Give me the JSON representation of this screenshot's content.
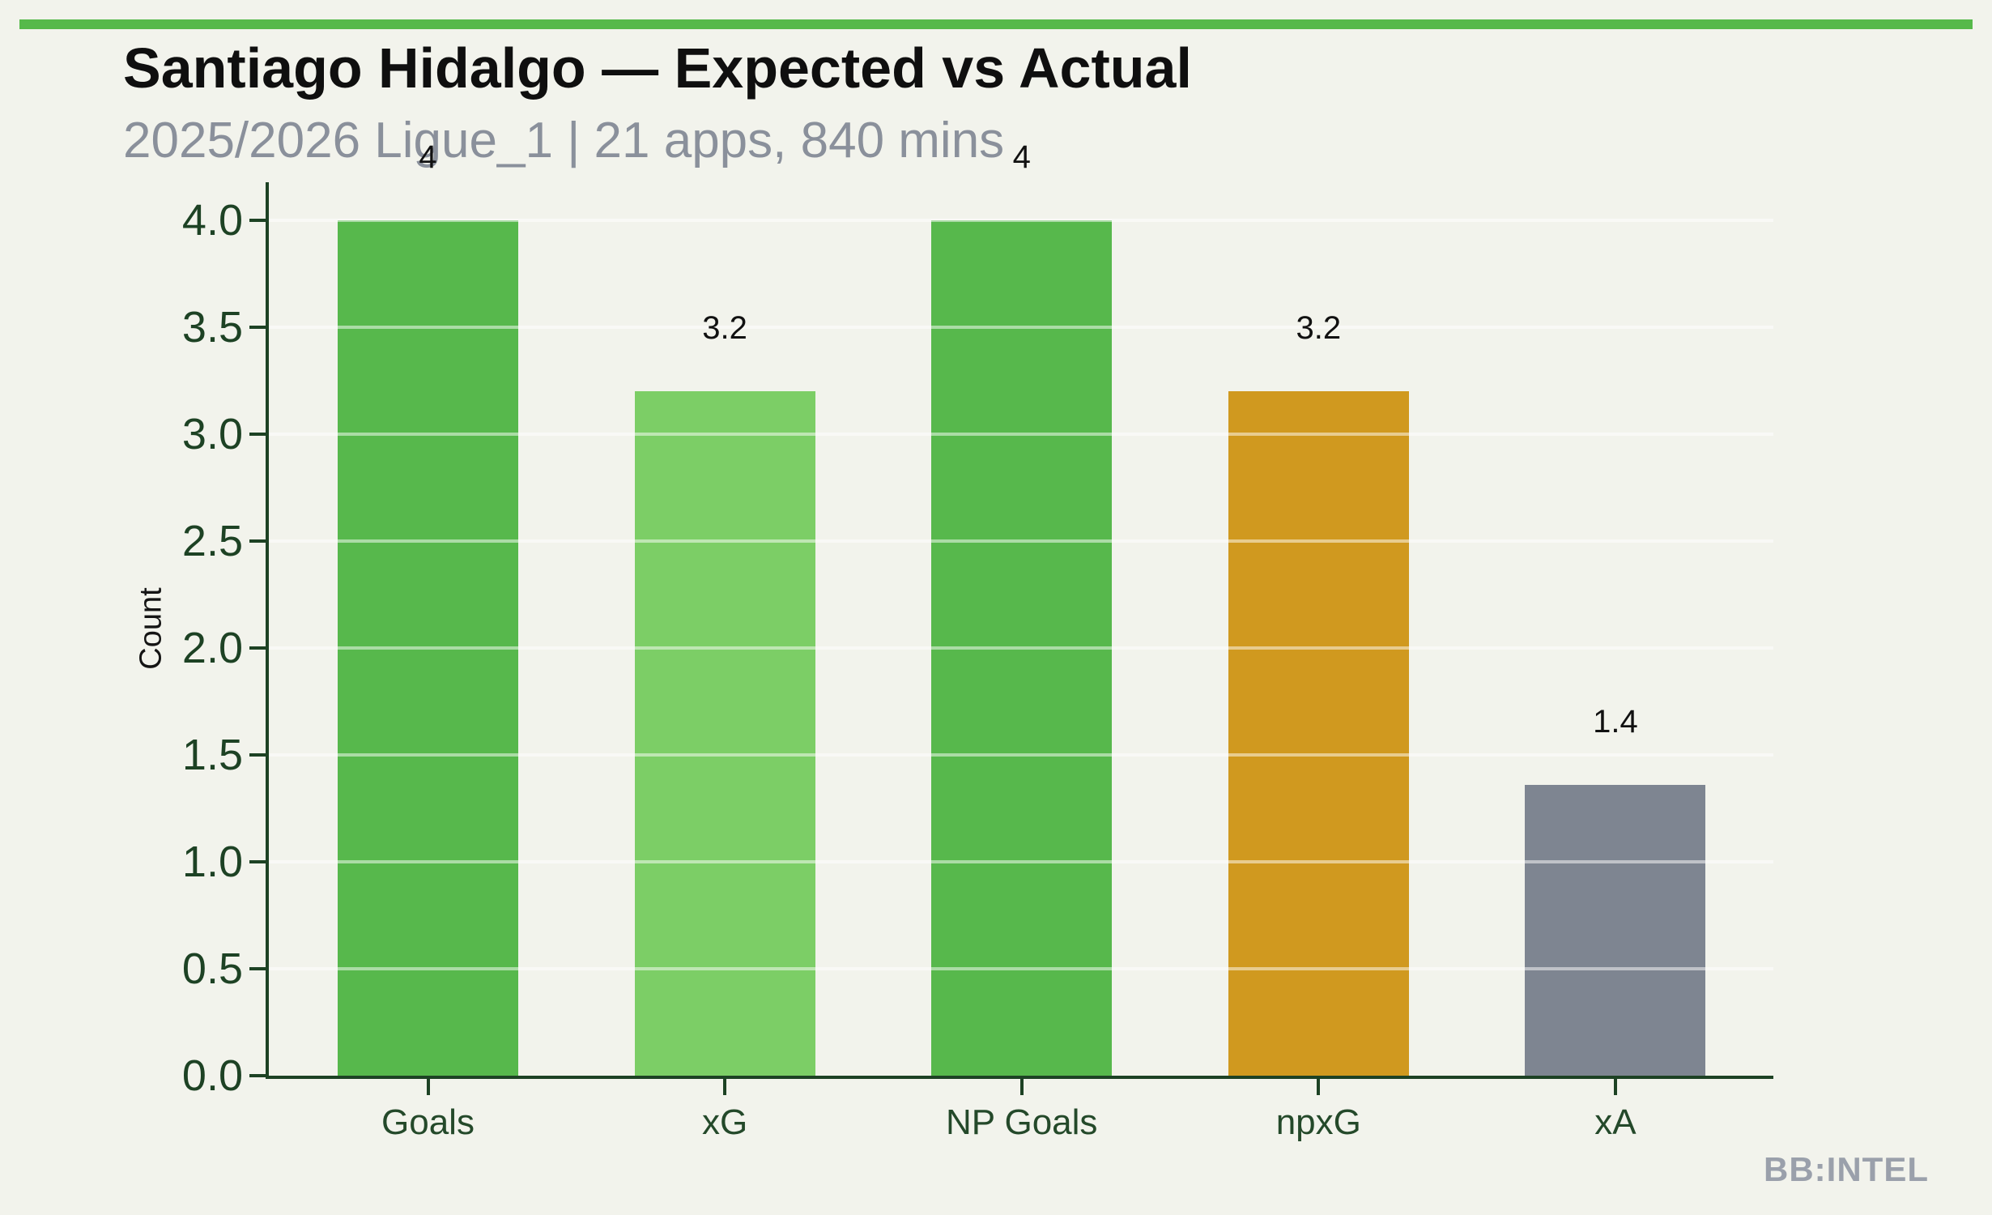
{
  "page": {
    "background": "#f2f3ec",
    "accent_bar_color": "#56b94a",
    "title_color": "#0f0f0f",
    "subtitle_color": "#8a909b",
    "watermark": "BB:INTEL",
    "watermark_color": "#9aa0ab"
  },
  "chart_data": {
    "type": "bar",
    "title": "Santiago Hidalgo — Expected vs Actual",
    "subtitle": "2025/2026 Ligue_1 | 21 apps, 840 mins",
    "xlabel": "",
    "ylabel": "Count",
    "categories": [
      "Goals",
      "xG",
      "NP Goals",
      "npxG",
      "xA"
    ],
    "values": [
      4,
      3.2,
      4,
      3.2,
      1.36
    ],
    "value_labels": [
      "4",
      "3.2",
      "4",
      "3.2",
      "1.4"
    ],
    "bar_colors": [
      "#57b84c",
      "#7cce66",
      "#57b84c",
      "#d0991f",
      "#7e8591"
    ],
    "ylim": [
      0,
      4.2
    ],
    "yticks": [
      0.0,
      0.5,
      1.0,
      1.5,
      2.0,
      2.5,
      3.0,
      3.5,
      4.0
    ],
    "ytick_format_decimals": 1,
    "grid": true,
    "grid_color": "rgba(255,255,255,0.5)",
    "axis_color": "#1d4224",
    "tick_label_color": "#1d4224",
    "value_label_color": "#111111",
    "legend_position": "none"
  }
}
